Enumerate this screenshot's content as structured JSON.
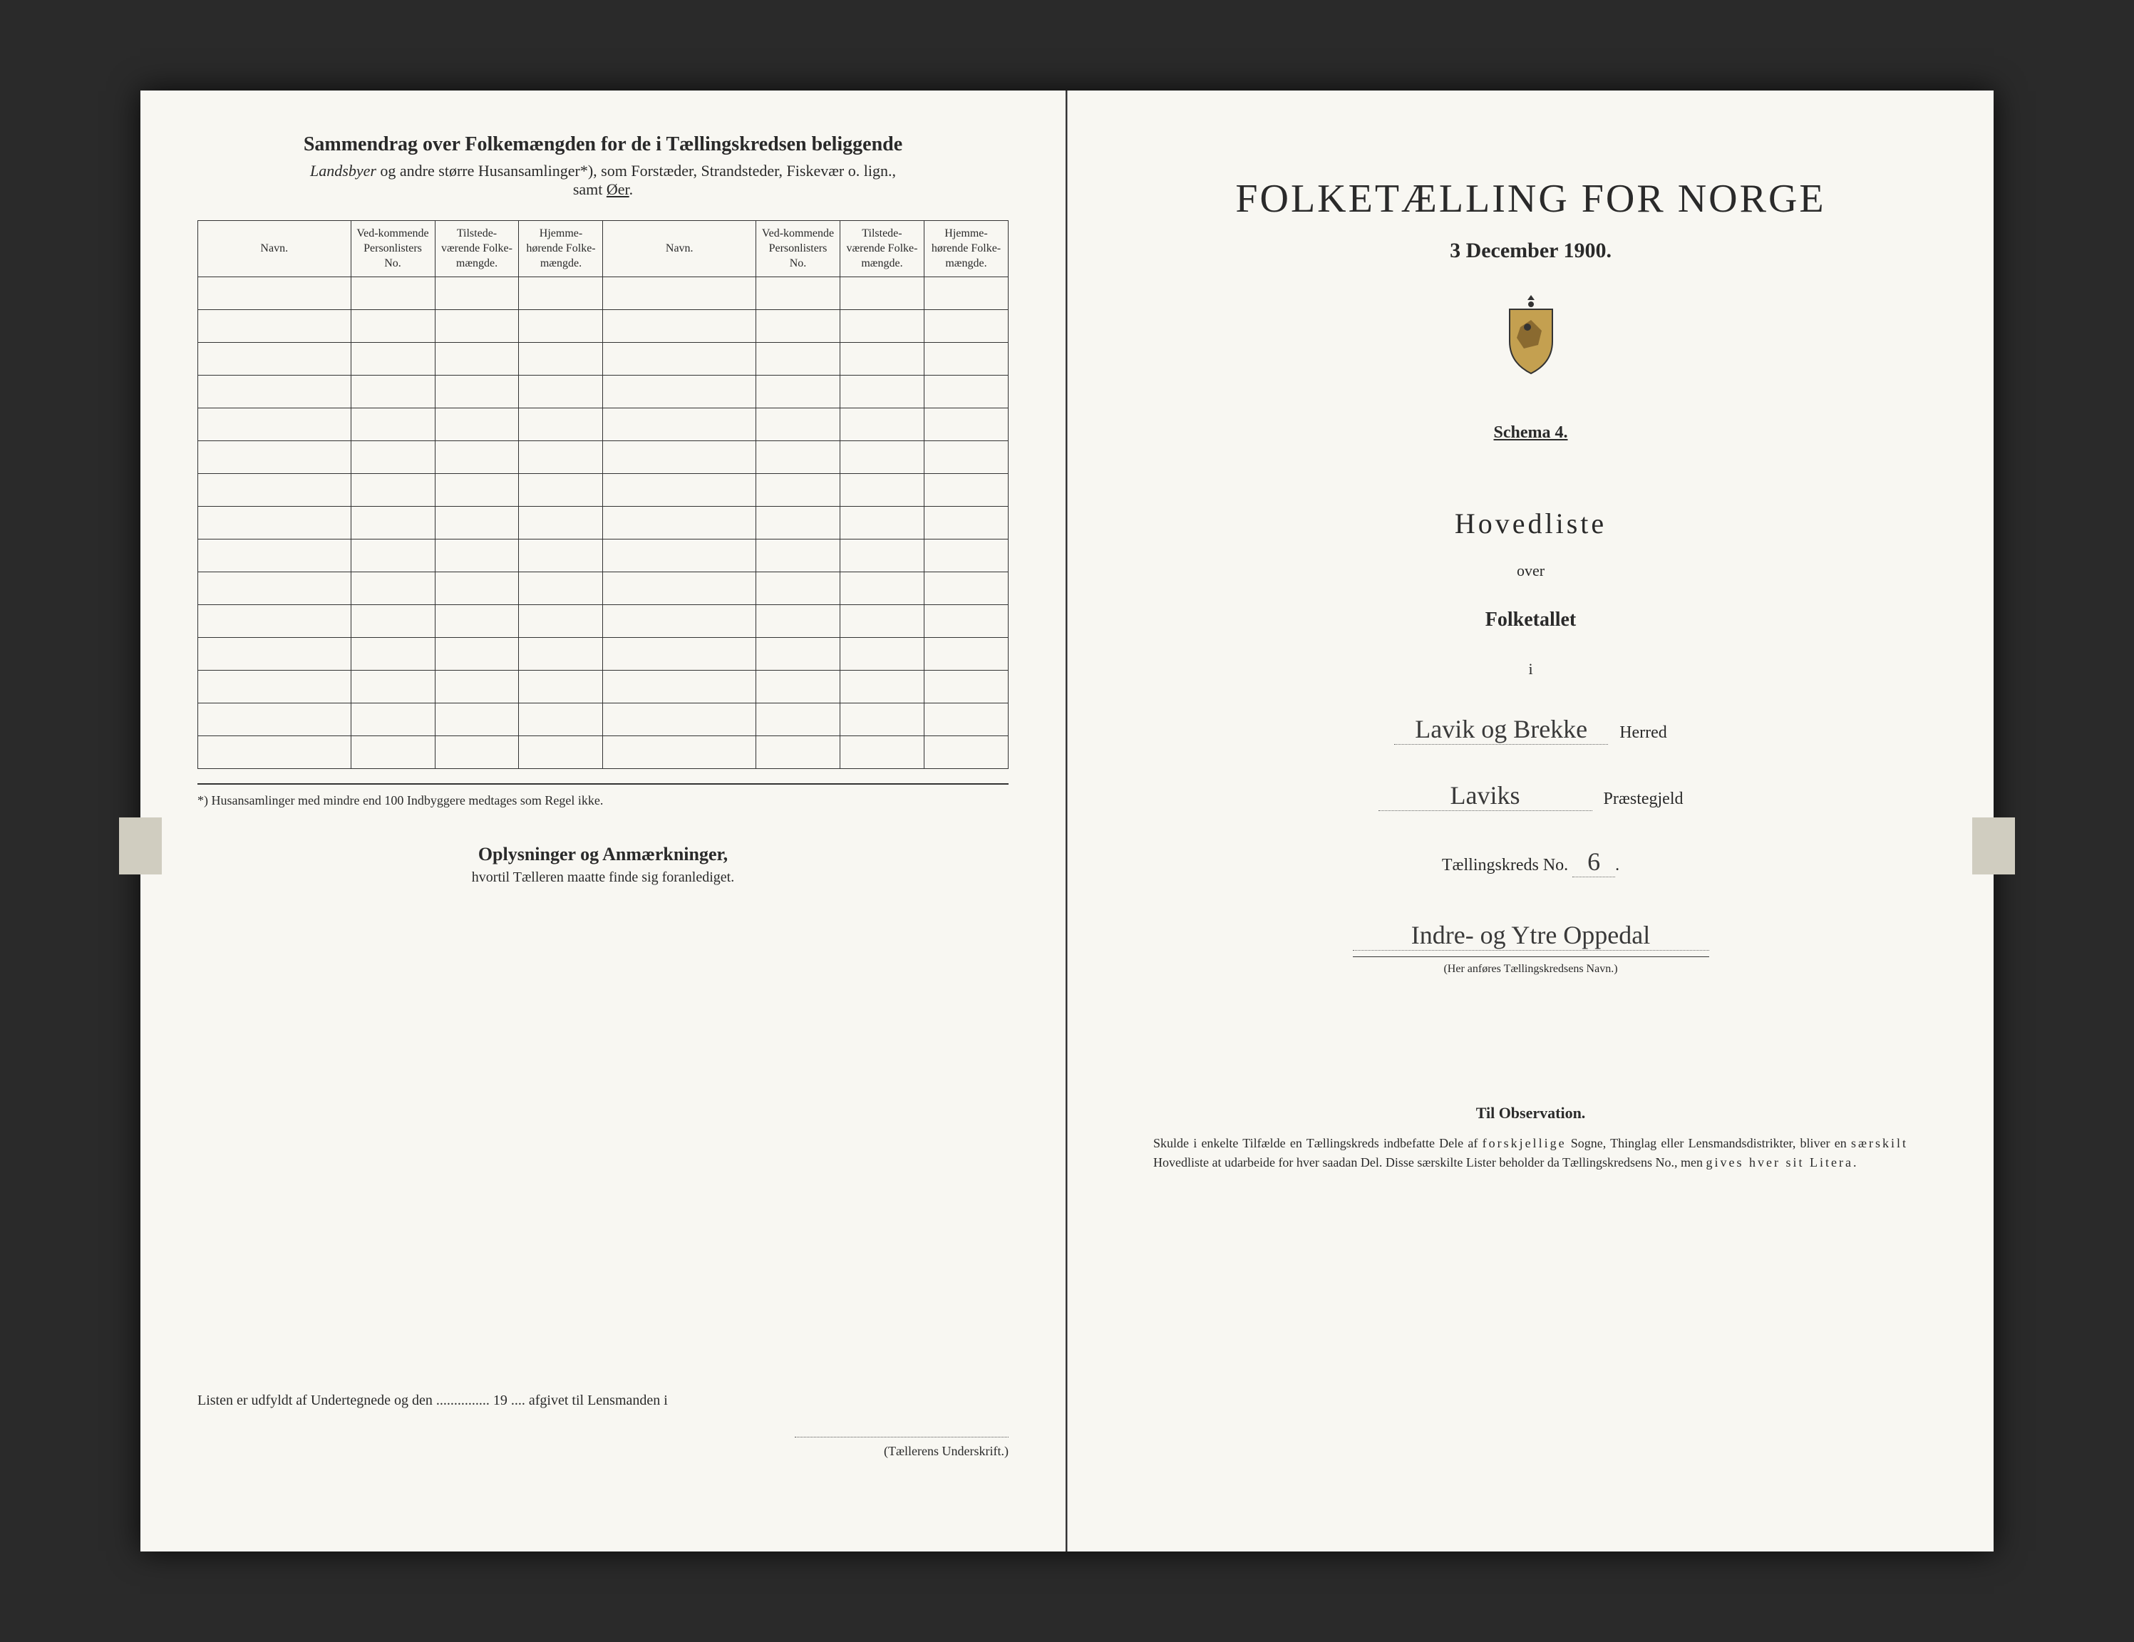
{
  "leftPage": {
    "headerTitle": "Sammendrag over Folkemængden for de i Tællingskredsen beliggende",
    "headerSubtitle": "Landsbyer og andre større Husansamlinger*), som Forstæder, Strandsteder, Fiskevær o. lign., samt Øer.",
    "columns": {
      "navn": "Navn.",
      "vedkommende": "Ved-kommende Personlisters No.",
      "tilstede": "Tilstede-værende Folke-mængde.",
      "hjemme": "Hjemme-hørende Folke-mængde."
    },
    "rowCount": 15,
    "footnote": "*) Husansamlinger med mindre end 100 Indbyggere medtages som Regel ikke.",
    "oplysTitle": "Oplysninger og Anmærkninger,",
    "oplysSubtitle": "hvortil Tælleren maatte finde sig foranlediget.",
    "bottomLine": "Listen er udfyldt af Undertegnede og den ............... 19 .... afgivet til Lensmanden i",
    "signatureCaption": "(Tællerens Underskrift.)"
  },
  "rightPage": {
    "mainTitle": "FOLKETÆLLING FOR NORGE",
    "date": "3 December 1900.",
    "schema": "Schema 4.",
    "hovedliste": "Hovedliste",
    "over": "over",
    "folketallet": "Folketallet",
    "i": "i",
    "herred": {
      "value": "Lavik og Brekke",
      "label": "Herred"
    },
    "praestegjeld": {
      "value": "Laviks",
      "label": "Præstegjeld"
    },
    "kredsNoLabel": "Tællingskreds No.",
    "kredsNoValue": "6",
    "kredsName": "Indre- og Ytre Oppedal",
    "kredsCaption": "(Her anføres Tællingskredsens Navn.)",
    "observation": {
      "title": "Til Observation.",
      "text": "Skulde i enkelte Tilfælde en Tællingskreds indbefatte Dele af forskjellige Sogne, Thinglag eller Lensmandsdistrikter, bliver en særskilt Hovedliste at udarbeide for hver saadan Del. Disse særskilte Lister beholder da Tællingskredsens No., men gives hver sit Litera."
    }
  },
  "colors": {
    "pageBackground": "#f8f7f2",
    "text": "#2a2a2a",
    "scannerBg": "#2a2a2a",
    "border": "#333333"
  }
}
